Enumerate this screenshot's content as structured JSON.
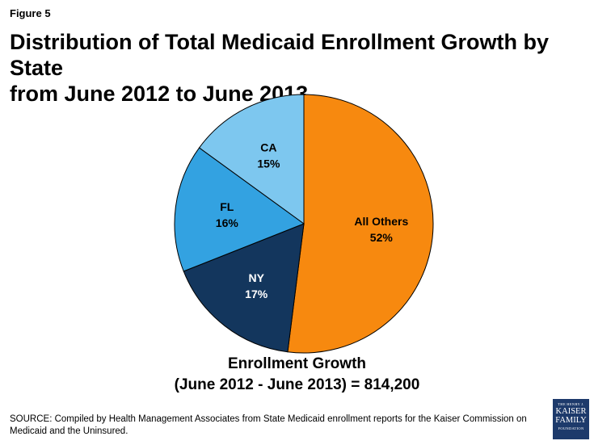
{
  "figure_label": "Figure 5",
  "title_lines": [
    "Distribution of Total Medicaid Enrollment Growth by State",
    "from June 2012 to June 2013"
  ],
  "chart_data": {
    "type": "pie",
    "title": "Distribution of Total Medicaid Enrollment Growth by State from June 2012 to June 2013",
    "slices": [
      {
        "label": "All Others",
        "value": 52,
        "display": "52%",
        "color": "#f7890f",
        "text_color": "#000000"
      },
      {
        "label": "NY",
        "value": 17,
        "display": "17%",
        "color": "#13365d",
        "text_color": "#ffffff"
      },
      {
        "label": "FL",
        "value": 16,
        "display": "16%",
        "color": "#33a2e1",
        "text_color": "#000000"
      },
      {
        "label": "CA",
        "value": 15,
        "display": "15%",
        "color": "#7dc7ef",
        "text_color": "#000000"
      }
    ],
    "start": "12 o'clock",
    "direction": "clockwise"
  },
  "caption": {
    "line1": "Enrollment Growth",
    "line2": "(June 2012 - June 2013) = 814,200"
  },
  "source": "SOURCE: Compiled by Health Management Associates from State Medicaid enrollment reports for the Kaiser Commission on Medicaid and the Uninsured.",
  "logo": {
    "line1": "THE HENRY J.",
    "line2": "KAISER",
    "line3": "FAMILY",
    "line4": "FOUNDATION"
  }
}
